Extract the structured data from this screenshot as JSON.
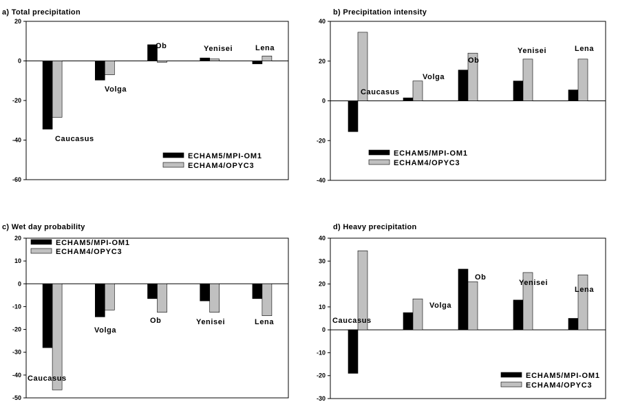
{
  "colors": {
    "series1": "#000000",
    "series2": "#c0c0c0",
    "axis": "#000000",
    "background": "#ffffff"
  },
  "chart_data": [
    {
      "type": "bar",
      "title": "a) Total precipitation",
      "xlabel": "",
      "ylabel": "",
      "categories": [
        "Caucasus",
        "Volga",
        "Ob",
        "Yenisei",
        "Lena"
      ],
      "series": [
        {
          "name": "ECHAM5/MPI-OM1",
          "values": [
            -34.5,
            -9.7,
            8.2,
            1.5,
            -1.5
          ]
        },
        {
          "name": "ECHAM4/OPYC3",
          "values": [
            -28.5,
            -7.0,
            -0.7,
            1.0,
            2.5
          ]
        }
      ],
      "ylim": [
        -60,
        20
      ],
      "yticks": [
        "20",
        "0",
        "-20",
        "-40",
        "-60"
      ],
      "grid": false,
      "legend": "bottom-right"
    },
    {
      "type": "bar",
      "title": "b) Precipitation intensity",
      "xlabel": "",
      "ylabel": "",
      "categories": [
        "Caucasus",
        "Volga",
        "Ob",
        "Yenisei",
        "Lena"
      ],
      "series": [
        {
          "name": "ECHAM5/MPI-OM1",
          "values": [
            -15.5,
            1.5,
            15.5,
            10.0,
            5.5
          ]
        },
        {
          "name": "ECHAM4/OPYC3",
          "values": [
            34.5,
            10.0,
            24.0,
            21.0,
            21.0
          ]
        }
      ],
      "ylim": [
        -40,
        40
      ],
      "yticks": [
        "40",
        "20",
        "0",
        "-20",
        "-40"
      ],
      "grid": false,
      "legend": "bottom-left"
    },
    {
      "type": "bar",
      "title": "c) Wet day probability",
      "xlabel": "",
      "ylabel": "",
      "categories": [
        "Caucasus",
        "Volga",
        "Ob",
        "Yenisei",
        "Lena"
      ],
      "series": [
        {
          "name": "ECHAM5/MPI-OM1",
          "values": [
            -28.0,
            -14.5,
            -6.5,
            -7.5,
            -6.5
          ]
        },
        {
          "name": "ECHAM4/OPYC3",
          "values": [
            -46.5,
            -11.5,
            -12.5,
            -12.5,
            -14.0
          ]
        }
      ],
      "ylim": [
        -50,
        20
      ],
      "yticks": [
        "20",
        "10",
        "0",
        "-10",
        "-20",
        "-30",
        "-40",
        "-50"
      ],
      "grid": false,
      "legend": "top-left"
    },
    {
      "type": "bar",
      "title": "d) Heavy precipitation",
      "xlabel": "",
      "ylabel": "",
      "categories": [
        "Caucasus",
        "Volga",
        "Ob",
        "Yenisei",
        "Lena"
      ],
      "series": [
        {
          "name": "ECHAM5/MPI-OM1",
          "values": [
            -19.0,
            7.5,
            26.5,
            13.0,
            5.0
          ]
        },
        {
          "name": "ECHAM4/OPYC3",
          "values": [
            34.5,
            13.5,
            21.0,
            25.0,
            24.0
          ]
        }
      ],
      "ylim": [
        -30,
        40
      ],
      "yticks": [
        "40",
        "30",
        "20",
        "10",
        "0",
        "-10",
        "-20",
        "-30"
      ],
      "grid": false,
      "legend": "bottom-right"
    }
  ]
}
